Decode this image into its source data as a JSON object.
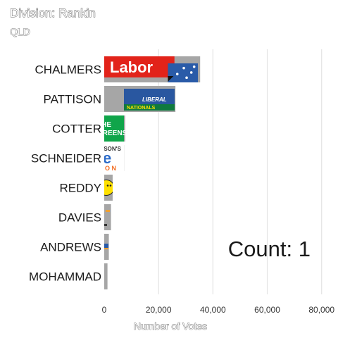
{
  "chart_data": {
    "type": "bar",
    "orientation": "horizontal",
    "title": "Division: Rankin",
    "subtitle": "QLD",
    "xlabel": "Number of Votes",
    "ylabel": "",
    "xlim": [
      0,
      85000
    ],
    "x_ticks": [
      0,
      20000,
      40000,
      60000,
      80000
    ],
    "x_tick_labels": [
      "0",
      "20,000",
      "40,000",
      "60,000",
      "80,000"
    ],
    "grid": true,
    "categories": [
      "CHALMERS",
      "PATTISON",
      "COTTER",
      "SCHNEIDER",
      "REDDY",
      "DAVIES",
      "ANDREWS",
      "MOHAMMAD"
    ],
    "values": [
      35300,
      26200,
      7700,
      7300,
      3100,
      2500,
      1700,
      1200
    ],
    "party_logos": [
      "labor-logo",
      "liberal-nationals-logo",
      "greens-logo",
      "one-nation-logo",
      "uap-logo",
      "party-logo",
      "party-logo",
      "party-logo"
    ],
    "logo_labels": [
      "Labor",
      "LIBERAL NATIONALS",
      "THE GREENS",
      "HANSON'S ONE NATION",
      "",
      "",
      "",
      ""
    ],
    "annotation": "Count:  1",
    "colors": {
      "bar": "#a6a6a6",
      "labor_red": "#e2231a",
      "labor_blue": "#2a5ba8",
      "greens": "#10a54a",
      "uap_yellow": "#ffe100",
      "one_nation_orange": "#f36c21"
    }
  }
}
